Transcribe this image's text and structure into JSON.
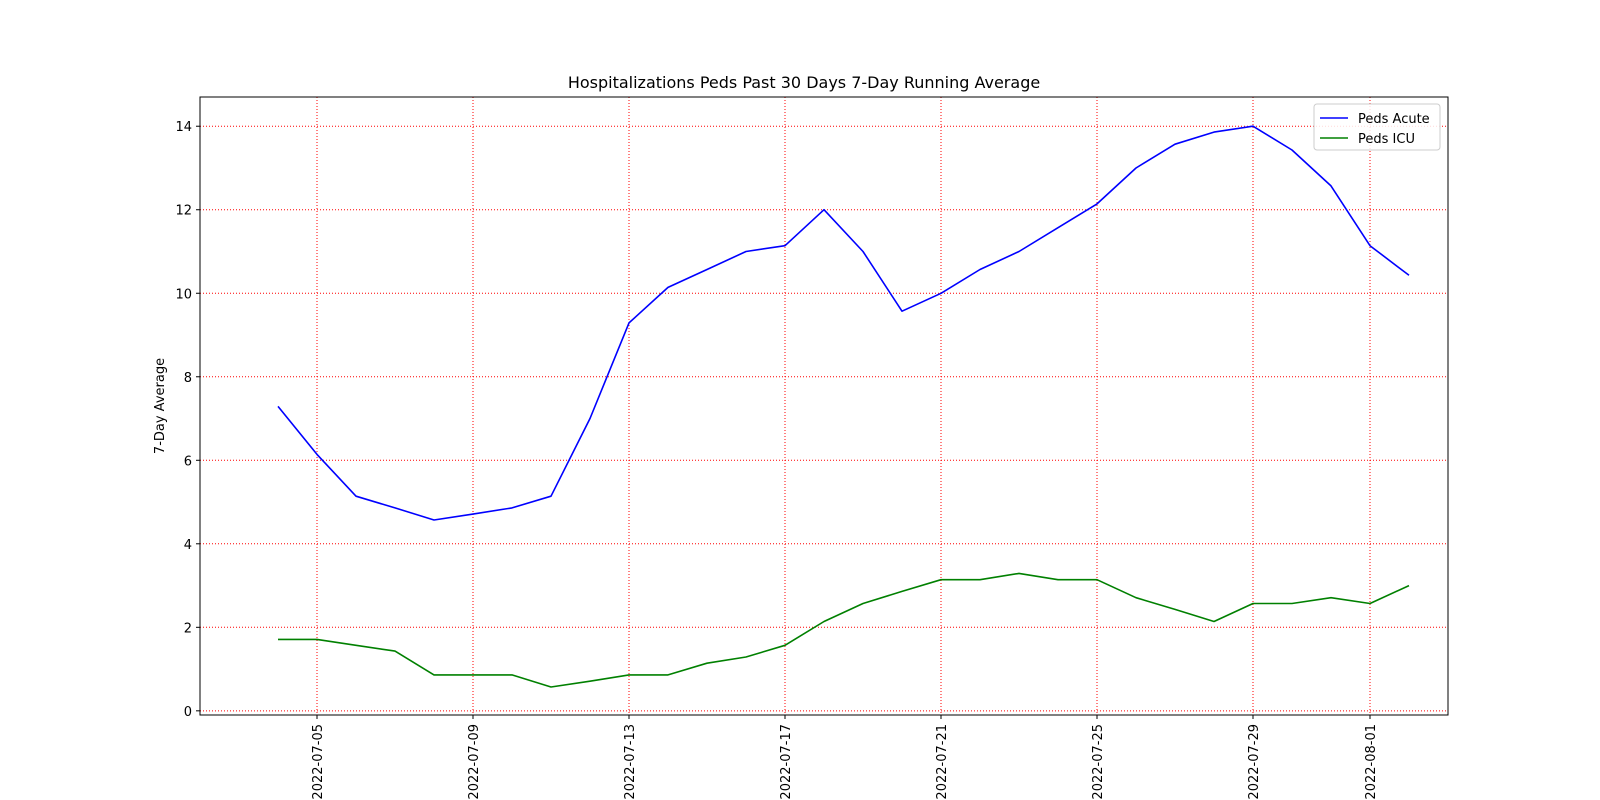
{
  "chart_data": {
    "type": "line",
    "title": "Hospitalizations Peds Past 30 Days 7-Day Running Average",
    "xlabel": "",
    "ylabel": "7-Day Average",
    "x": [
      "2022-07-04",
      "2022-07-05",
      "2022-07-06",
      "2022-07-07",
      "2022-07-08",
      "2022-07-09",
      "2022-07-10",
      "2022-07-11",
      "2022-07-12",
      "2022-07-13",
      "2022-07-14",
      "2022-07-15",
      "2022-07-16",
      "2022-07-17",
      "2022-07-18",
      "2022-07-19",
      "2022-07-20",
      "2022-07-21",
      "2022-07-22",
      "2022-07-23",
      "2022-07-24",
      "2022-07-25",
      "2022-07-26",
      "2022-07-27",
      "2022-07-28",
      "2022-07-29",
      "2022-07-30",
      "2022-07-31",
      "2022-08-01",
      "2022-08-02"
    ],
    "xticks": [
      "2022-07-05",
      "2022-07-09",
      "2022-07-13",
      "2022-07-17",
      "2022-07-21",
      "2022-07-25",
      "2022-07-29",
      "2022-08-01"
    ],
    "xlim": [
      "2022-07-02",
      "2022-08-03"
    ],
    "yticks": [
      0,
      2,
      4,
      6,
      8,
      10,
      12,
      14
    ],
    "ylim": [
      -0.1,
      14.7
    ],
    "grid": true,
    "legend_position": "top-right",
    "series": [
      {
        "name": "Peds Acute",
        "color": "#0000ff",
        "values": [
          7.29,
          6.14,
          5.14,
          4.86,
          4.57,
          4.71,
          4.86,
          5.14,
          7.0,
          9.29,
          10.14,
          10.57,
          11.0,
          11.14,
          12.0,
          11.0,
          9.57,
          10.0,
          10.57,
          11.0,
          11.57,
          12.14,
          13.0,
          13.57,
          13.86,
          14.0,
          13.43,
          12.57,
          11.14,
          10.43
        ]
      },
      {
        "name": "Peds ICU",
        "color": "#008000",
        "values": [
          1.71,
          1.71,
          1.57,
          1.43,
          0.86,
          0.86,
          0.86,
          0.57,
          0.71,
          0.86,
          0.86,
          1.14,
          1.29,
          1.57,
          2.14,
          2.57,
          2.86,
          3.14,
          3.14,
          3.29,
          3.14,
          3.14,
          2.71,
          2.43,
          2.14,
          2.57,
          2.57,
          2.71,
          2.57,
          3.0
        ]
      }
    ]
  }
}
